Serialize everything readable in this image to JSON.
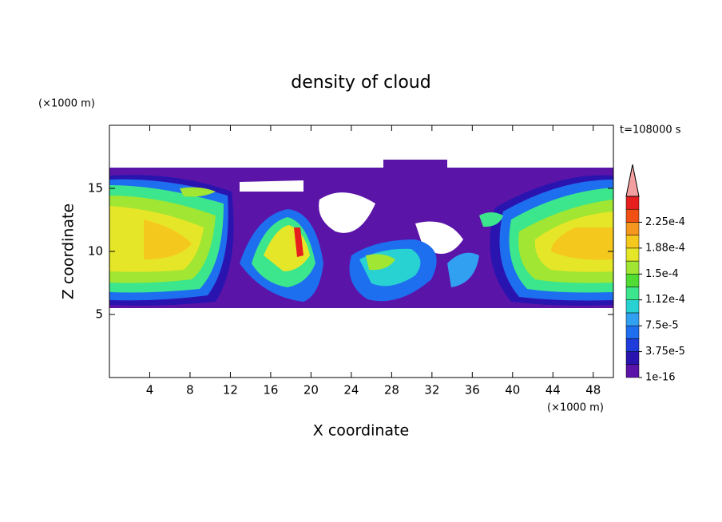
{
  "chart_data": {
    "type": "contour",
    "title": "density of cloud",
    "time_label": "t=108000 s",
    "xlabel": "X coordinate",
    "ylabel": "Z coordinate",
    "x_unit": "(×1000 m)",
    "y_unit": "(×1000 m)",
    "xlim": [
      0,
      50
    ],
    "ylim": [
      0,
      20
    ],
    "xticks": [
      4,
      8,
      12,
      16,
      20,
      24,
      28,
      32,
      36,
      40,
      44,
      48
    ],
    "yticks": [
      5,
      10,
      15
    ],
    "colorbar": {
      "ticks": [
        {
          "value": 1e-16,
          "label": "1e-16"
        },
        {
          "value": 3.75e-05,
          "label": "3.75e-5"
        },
        {
          "value": 7.5e-05,
          "label": "7.5e-5"
        },
        {
          "value": 0.000112,
          "label": "1.12e-4"
        },
        {
          "value": 0.00015,
          "label": "1.5e-4"
        },
        {
          "value": 0.000188,
          "label": "1.88e-4"
        },
        {
          "value": 0.000225,
          "label": "2.25e-4"
        }
      ],
      "colors": [
        "#5a14a8",
        "#2a14b0",
        "#1e3cdc",
        "#1e6ef0",
        "#32a0f0",
        "#28d2d2",
        "#3ce68c",
        "#50dc32",
        "#a0e632",
        "#e6e628",
        "#f5c81e",
        "#f5961e",
        "#f05014",
        "#e61e1e"
      ],
      "extend_color": "#f5a0a0"
    }
  }
}
